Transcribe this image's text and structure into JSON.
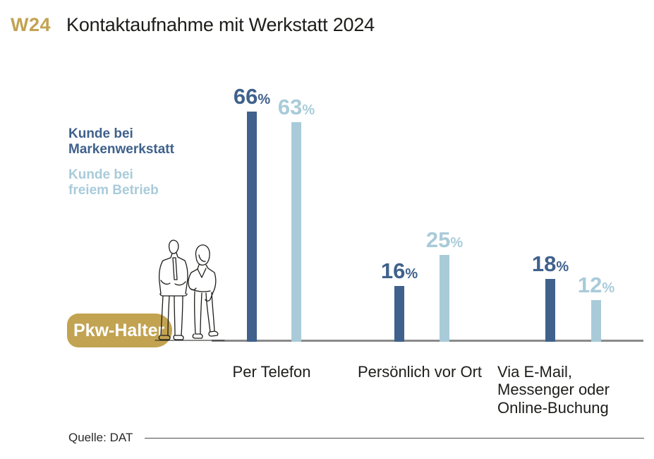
{
  "header": {
    "tag": "W24",
    "title": "Kontaktaufnahme mit Werkstatt 2024"
  },
  "legend": {
    "series1_label": "Kunde bei\nMarkenwerkstatt",
    "series2_label": "Kunde bei\nfreiem Betrieb"
  },
  "axis_label": "Pkw-Halter",
  "illustration": "two-people-standing-line-art",
  "source": "Quelle: DAT",
  "colors": {
    "accent_gold": "#c2a351",
    "series1": "#3f618c",
    "series2": "#a9cbd9",
    "baseline": "#8a8a8a",
    "text": "#1d1d1b"
  },
  "chart_data": {
    "type": "bar",
    "title": "Kontaktaufnahme mit Werkstatt 2024",
    "categories": [
      "Per Telefon",
      "Persönlich vor Ort",
      "Via E-Mail, Messenger oder Online-Buchung"
    ],
    "series": [
      {
        "name": "Kunde bei Markenwerkstatt",
        "values": [
          66,
          16,
          18
        ]
      },
      {
        "name": "Kunde bei freiem Betrieb",
        "values": [
          63,
          25,
          12
        ]
      }
    ],
    "unit": "%",
    "ylim": [
      0,
      70
    ],
    "grid": false,
    "legend_position": "left",
    "x_axis_subject": "Pkw-Halter"
  }
}
